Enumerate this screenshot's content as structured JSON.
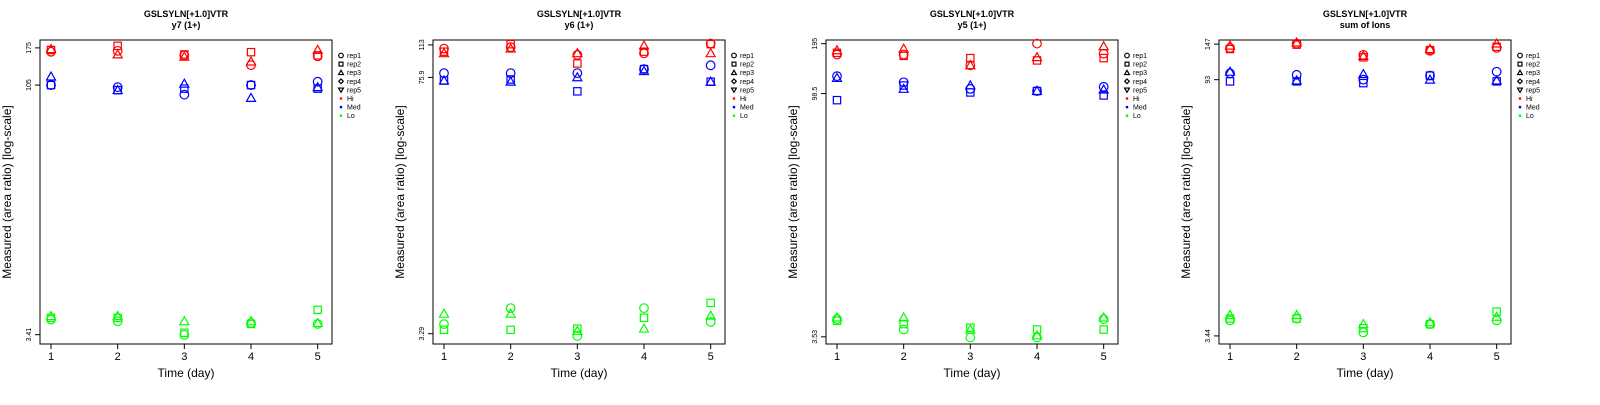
{
  "colors": {
    "Hi": "#ff0000",
    "Med": "#0000ff",
    "Lo": "#00ff00",
    "axis": "#000000"
  },
  "legend": {
    "shapes": [
      {
        "label": "rep1",
        "shape": "circle"
      },
      {
        "label": "rep2",
        "shape": "square"
      },
      {
        "label": "rep3",
        "shape": "triangle-up"
      },
      {
        "label": "rep4",
        "shape": "diamond"
      },
      {
        "label": "rep5",
        "shape": "triangle-down"
      }
    ],
    "levels": [
      "Hi",
      "Med",
      "Lo"
    ]
  },
  "chart_data": [
    {
      "type": "scatter",
      "title": "GSLSYLN[+1.0]VTR",
      "subtitle": "y7 (1+)",
      "xlabel": "Time (day)",
      "ylabel": "Measured (area ratio) [log-scale]",
      "y_scale": "log",
      "ylim": [
        3.0,
        195
      ],
      "x": [
        1,
        2,
        3,
        4,
        5
      ],
      "yticks": [
        3.41,
        105,
        175
      ],
      "series": [
        {
          "level": "Hi",
          "rep": "rep1",
          "values": [
            166,
            168,
            158,
            138,
            156
          ]
        },
        {
          "level": "Hi",
          "rep": "rep2",
          "values": [
            170,
            180,
            160,
            165,
            158
          ]
        },
        {
          "level": "Hi",
          "rep": "rep3",
          "values": [
            172,
            160,
            155,
            145,
            170
          ]
        },
        {
          "level": "Med",
          "rep": "rep1",
          "values": [
            105,
            102,
            92,
            105,
            110
          ]
        },
        {
          "level": "Med",
          "rep": "rep2",
          "values": [
            105,
            98,
            100,
            105,
            100
          ]
        },
        {
          "level": "Med",
          "rep": "rep3",
          "values": [
            118,
            98,
            107,
            88,
            102
          ]
        },
        {
          "level": "Lo",
          "rep": "rep1",
          "values": [
            4.2,
            4.1,
            3.4,
            4.0,
            3.95
          ]
        },
        {
          "level": "Lo",
          "rep": "rep2",
          "values": [
            4.3,
            4.3,
            3.5,
            3.95,
            4.8
          ]
        },
        {
          "level": "Lo",
          "rep": "rep3",
          "values": [
            4.4,
            4.4,
            4.1,
            4.1,
            4.0
          ]
        }
      ]
    },
    {
      "type": "scatter",
      "title": "GSLSYLN[+1.0]VTR",
      "subtitle": "y6 (1+)",
      "xlabel": "Time (day)",
      "ylabel": "Measured (area ratio) [log-scale]",
      "y_scale": "log",
      "ylim": [
        2.9,
        120
      ],
      "x": [
        1,
        2,
        3,
        4,
        5
      ],
      "yticks": [
        3.29,
        75.9,
        113
      ],
      "series": [
        {
          "level": "Hi",
          "rep": "rep1",
          "values": [
            108,
            110,
            100,
            102,
            115
          ]
        },
        {
          "level": "Hi",
          "rep": "rep2",
          "values": [
            104,
            114,
            90,
            104,
            114
          ]
        },
        {
          "level": "Hi",
          "rep": "rep3",
          "values": [
            102,
            108,
            102,
            112,
            102
          ]
        },
        {
          "level": "Med",
          "rep": "rep1",
          "values": [
            80,
            80,
            80,
            84,
            88
          ]
        },
        {
          "level": "Med",
          "rep": "rep2",
          "values": [
            73,
            74,
            64,
            84,
            72
          ]
        },
        {
          "level": "Med",
          "rep": "rep3",
          "values": [
            73,
            72,
            76,
            82,
            72
          ]
        },
        {
          "level": "Lo",
          "rep": "rep1",
          "values": [
            3.7,
            4.5,
            3.2,
            4.5,
            3.8
          ]
        },
        {
          "level": "Lo",
          "rep": "rep2",
          "values": [
            3.45,
            3.45,
            3.5,
            4.0,
            4.8
          ]
        },
        {
          "level": "Lo",
          "rep": "rep3",
          "values": [
            4.2,
            4.2,
            3.4,
            3.5,
            4.1
          ]
        }
      ]
    },
    {
      "type": "scatter",
      "title": "GSLSYLN[+1.0]VTR",
      "subtitle": "y5 (1+)",
      "xlabel": "Time (day)",
      "ylabel": "Measured (area ratio) [log-scale]",
      "y_scale": "log",
      "ylim": [
        3.2,
        205
      ],
      "x": [
        1,
        2,
        3,
        4,
        5
      ],
      "yticks": [
        3.53,
        98.5,
        195
      ],
      "series": [
        {
          "level": "Hi",
          "rep": "rep1",
          "values": [
            168,
            168,
            145,
            195,
            170
          ]
        },
        {
          "level": "Hi",
          "rep": "rep2",
          "values": [
            172,
            165,
            160,
            155,
            160
          ]
        },
        {
          "level": "Hi",
          "rep": "rep3",
          "values": [
            178,
            182,
            145,
            162,
            188
          ]
        },
        {
          "level": "Med",
          "rep": "rep1",
          "values": [
            125,
            115,
            105,
            102,
            108
          ]
        },
        {
          "level": "Med",
          "rep": "rep2",
          "values": [
            90,
            110,
            100,
            102,
            96
          ]
        },
        {
          "level": "Med",
          "rep": "rep3",
          "values": [
            122,
            105,
            110,
            102,
            104
          ]
        },
        {
          "level": "Lo",
          "rep": "rep1",
          "values": [
            4.5,
            3.9,
            3.5,
            3.5,
            4.5
          ]
        },
        {
          "level": "Lo",
          "rep": "rep2",
          "values": [
            4.4,
            4.2,
            4.0,
            3.9,
            3.9
          ]
        },
        {
          "level": "Lo",
          "rep": "rep3",
          "values": [
            4.6,
            4.6,
            3.9,
            3.6,
            4.6
          ]
        }
      ]
    },
    {
      "type": "scatter",
      "title": "GSLSYLN[+1.0]VTR",
      "subtitle": "sum of Ions",
      "xlabel": "Time (day)",
      "ylabel": "Measured (area ratio) [log-scale]",
      "y_scale": "log",
      "ylim": [
        3.1,
        155
      ],
      "x": [
        1,
        2,
        3,
        4,
        5
      ],
      "yticks": [
        3.44,
        93,
        147
      ],
      "series": [
        {
          "level": "Hi",
          "rep": "rep1",
          "values": [
            140,
            148,
            128,
            135,
            140
          ]
        },
        {
          "level": "Hi",
          "rep": "rep2",
          "values": [
            138,
            146,
            124,
            136,
            142
          ]
        },
        {
          "level": "Hi",
          "rep": "rep3",
          "values": [
            144,
            150,
            126,
            138,
            148
          ]
        },
        {
          "level": "Med",
          "rep": "rep1",
          "values": [
            101,
            99,
            93,
            98,
            103
          ]
        },
        {
          "level": "Med",
          "rep": "rep2",
          "values": [
            91,
            91,
            89,
            98,
            91
          ]
        },
        {
          "level": "Med",
          "rep": "rep3",
          "values": [
            103,
            92,
            100,
            93,
            92
          ]
        },
        {
          "level": "Lo",
          "rep": "rep1",
          "values": [
            4.2,
            4.3,
            3.6,
            4.0,
            4.2
          ]
        },
        {
          "level": "Lo",
          "rep": "rep2",
          "values": [
            4.3,
            4.3,
            3.8,
            4.0,
            4.7
          ]
        },
        {
          "level": "Lo",
          "rep": "rep3",
          "values": [
            4.5,
            4.5,
            4.0,
            4.1,
            4.4
          ]
        }
      ]
    }
  ]
}
